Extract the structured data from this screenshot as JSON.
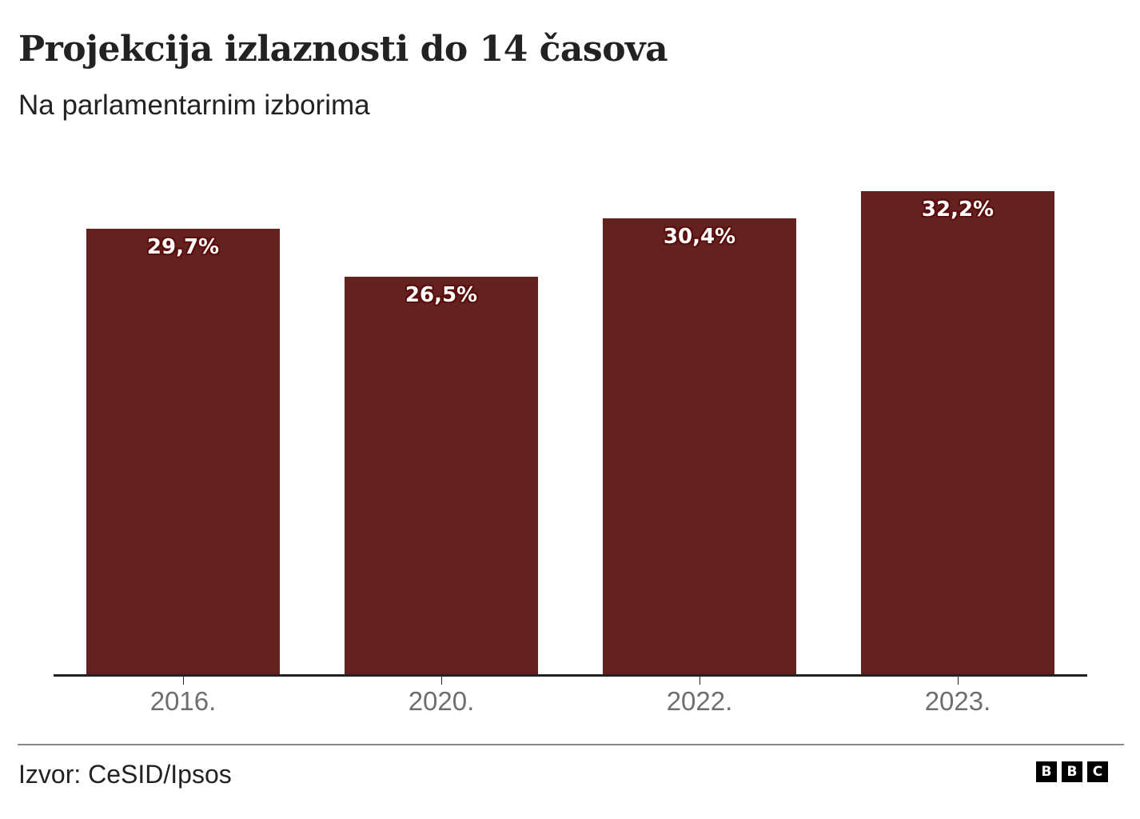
{
  "header": {
    "title": "Projekcija izlaznosti do 14 časova",
    "subtitle": "Na parlamentarnim izborima"
  },
  "footer": {
    "source": "Izvor: CeSID/Ipsos",
    "logo": [
      "B",
      "B",
      "C"
    ]
  },
  "colors": {
    "bar": "#632220",
    "label_outline": "#5a0f0c",
    "axis": "#222222",
    "tick_label": "#6e6e6e"
  },
  "bars": [
    {
      "category": "2016.",
      "label": "29,7%"
    },
    {
      "category": "2020.",
      "label": "26,5%"
    },
    {
      "category": "2022.",
      "label": "30,4%"
    },
    {
      "category": "2023.",
      "label": "32,2%"
    }
  ],
  "chart_data": {
    "type": "bar",
    "title": "Projekcija izlaznosti do 14 časova",
    "subtitle": "Na parlamentarnim izborima",
    "categories": [
      "2016.",
      "2020.",
      "2022.",
      "2023."
    ],
    "values": [
      29.7,
      26.5,
      30.4,
      32.2
    ],
    "value_labels": [
      "29,7%",
      "26,5%",
      "30,4%",
      "32,2%"
    ],
    "xlabel": "",
    "ylabel": "",
    "ylim": [
      0,
      32.2
    ],
    "grid": false,
    "legend": null,
    "source": "Izvor: CeSID/Ipsos",
    "bar_color": "#632220"
  }
}
